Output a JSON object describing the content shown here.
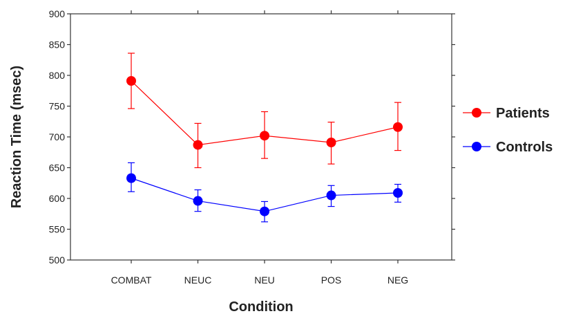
{
  "chart_data": {
    "type": "line",
    "title": "",
    "xlabel": "Condition",
    "ylabel": "Reaction Time (msec)",
    "categories": [
      "COMBAT",
      "NEUC",
      "NEU",
      "POS",
      "NEG"
    ],
    "ylim": [
      500,
      900
    ],
    "yticks": [
      "500",
      "550",
      "600",
      "650",
      "700",
      "750",
      "800",
      "850",
      "900"
    ],
    "grid": false,
    "legend_position": "right",
    "series": [
      {
        "name": "Patients",
        "color": "#ff0000",
        "values": [
          791,
          687,
          702,
          691,
          716
        ],
        "err_low": [
          746,
          650,
          665,
          656,
          678
        ],
        "err_high": [
          836,
          722,
          741,
          724,
          756
        ]
      },
      {
        "name": "Controls",
        "color": "#0000ff",
        "values": [
          633,
          596,
          579,
          605,
          609
        ],
        "err_low": [
          611,
          579,
          562,
          587,
          594
        ],
        "err_high": [
          658,
          614,
          595,
          621,
          623
        ]
      }
    ]
  }
}
